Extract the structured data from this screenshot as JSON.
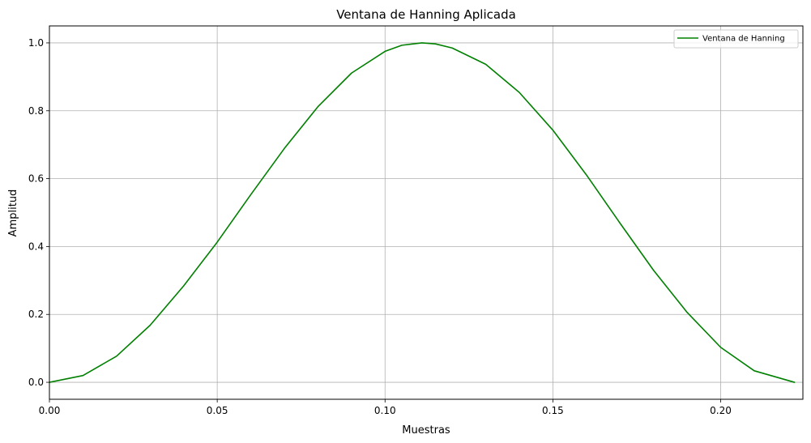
{
  "chart_data": {
    "type": "line",
    "title": "Ventana de Hanning Aplicada",
    "xlabel": "Muestras",
    "ylabel": "Amplitud",
    "xlim": [
      0.0,
      0.2245
    ],
    "ylim": [
      -0.05,
      1.05
    ],
    "xticks": [
      0.0,
      0.05,
      0.1,
      0.15,
      0.2
    ],
    "xtick_labels": [
      "0.00",
      "0.05",
      "0.10",
      "0.15",
      "0.20"
    ],
    "yticks": [
      0.0,
      0.2,
      0.4,
      0.6,
      0.8,
      1.0
    ],
    "ytick_labels": [
      "0.0",
      "0.2",
      "0.4",
      "0.6",
      "0.8",
      "1.0"
    ],
    "grid": true,
    "legend_position": "top-right",
    "series": [
      {
        "name": "Ventana de Hanning",
        "color": "#008000",
        "x": [
          0.0,
          0.01,
          0.02,
          0.03,
          0.04,
          0.05,
          0.06,
          0.07,
          0.08,
          0.09,
          0.1,
          0.105,
          0.111,
          0.115,
          0.12,
          0.13,
          0.14,
          0.15,
          0.16,
          0.17,
          0.18,
          0.19,
          0.2,
          0.21,
          0.222
        ],
        "y": [
          0.0,
          0.02,
          0.077,
          0.168,
          0.284,
          0.413,
          0.553,
          0.689,
          0.812,
          0.911,
          0.975,
          0.993,
          1.0,
          0.997,
          0.985,
          0.937,
          0.854,
          0.743,
          0.611,
          0.469,
          0.33,
          0.206,
          0.103,
          0.034,
          0.0
        ]
      }
    ]
  }
}
